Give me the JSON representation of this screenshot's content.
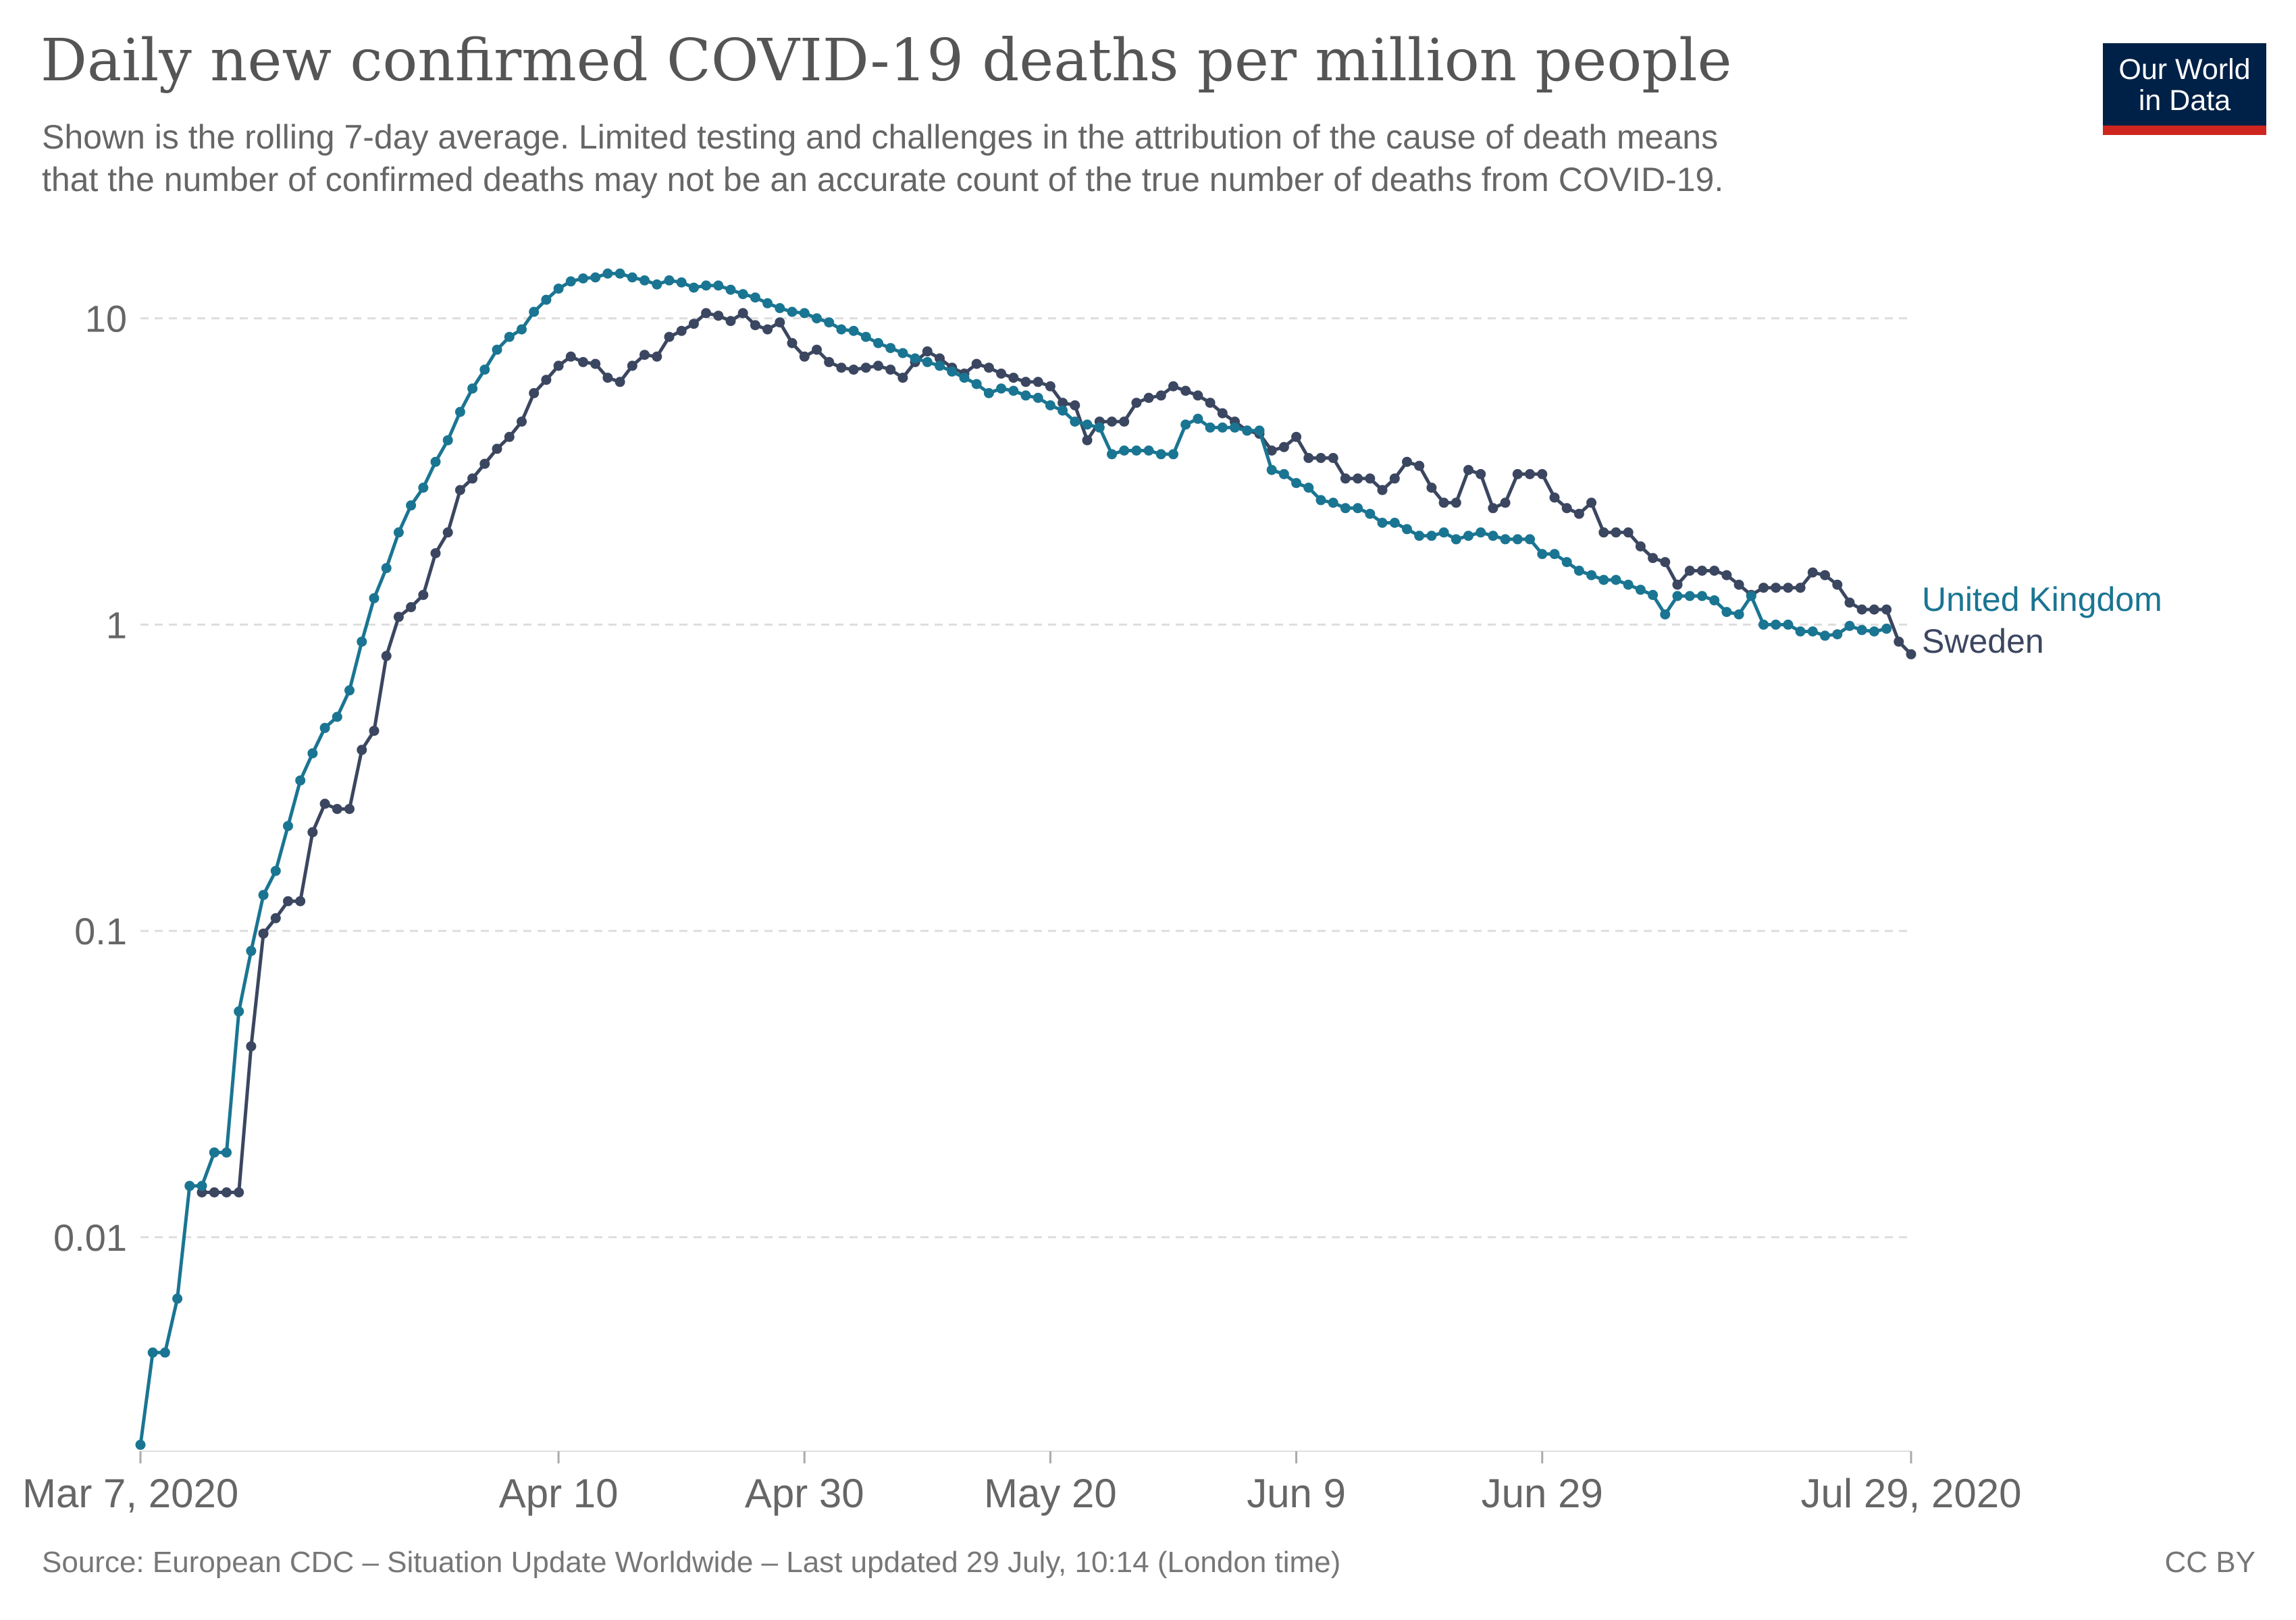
{
  "title": "Daily new confirmed COVID-19 deaths per million people",
  "subtitle_line1": "Shown is the rolling 7-day average. Limited testing and challenges in the attribution of the cause of death means",
  "subtitle_line2": "that the number of confirmed deaths may not be an accurate count of the true number of deaths from COVID-19.",
  "logo": {
    "line1": "Our World",
    "line2": "in Data"
  },
  "footer": {
    "source": "Source: European CDC – Situation Update Worldwide – Last updated 29 July, 10:14 (London time)",
    "license": "CC BY"
  },
  "colors": {
    "uk": "#1a7592",
    "sweden": "#3b4660",
    "grid": "#dddddd"
  },
  "chart_data": {
    "type": "line",
    "title": "Daily new confirmed COVID-19 deaths per million people",
    "yscale": "log",
    "ylim": [
      0.002,
      16
    ],
    "yticks": [
      {
        "value": 10,
        "label": "10"
      },
      {
        "value": 1,
        "label": "1"
      },
      {
        "value": 0.1,
        "label": "0.1"
      },
      {
        "value": 0.01,
        "label": "0.01"
      }
    ],
    "xlim": [
      0,
      144
    ],
    "xticks": [
      {
        "day": 0,
        "label": "Mar 7, 2020"
      },
      {
        "day": 34,
        "label": "Apr 10"
      },
      {
        "day": 54,
        "label": "Apr 30"
      },
      {
        "day": 74,
        "label": "May 20"
      },
      {
        "day": 94,
        "label": "Jun 9"
      },
      {
        "day": 114,
        "label": "Jun 29"
      },
      {
        "day": 144,
        "label": "Jul 29, 2020"
      }
    ],
    "legend_position": "right-end",
    "series": [
      {
        "name": "United Kingdom",
        "start_day": 0,
        "values": [
          0.0021,
          0.0042,
          0.0042,
          0.0063,
          0.0147,
          0.0147,
          0.0189,
          0.0189,
          0.0546,
          0.086,
          0.131,
          0.157,
          0.22,
          0.31,
          0.38,
          0.46,
          0.5,
          0.61,
          0.88,
          1.22,
          1.53,
          2.0,
          2.45,
          2.8,
          3.4,
          4.0,
          4.95,
          5.9,
          6.8,
          7.9,
          8.7,
          9.2,
          10.5,
          11.5,
          12.5,
          13.2,
          13.5,
          13.6,
          14.0,
          14.0,
          13.6,
          13.3,
          12.9,
          13.3,
          13.1,
          12.6,
          12.8,
          12.8,
          12.4,
          12.0,
          11.7,
          11.2,
          10.8,
          10.5,
          10.4,
          10.0,
          9.7,
          9.2,
          9.1,
          8.7,
          8.3,
          8.0,
          7.7,
          7.4,
          7.2,
          7.0,
          6.7,
          6.4,
          6.1,
          5.7,
          5.9,
          5.8,
          5.6,
          5.5,
          5.2,
          5.0,
          4.6,
          4.5,
          4.4,
          3.6,
          3.7,
          3.7,
          3.7,
          3.6,
          3.6,
          4.5,
          4.7,
          4.4,
          4.4,
          4.4,
          4.3,
          4.3,
          3.2,
          3.1,
          2.9,
          2.8,
          2.55,
          2.5,
          2.4,
          2.4,
          2.3,
          2.15,
          2.15,
          2.05,
          1.95,
          1.95,
          2.0,
          1.9,
          1.95,
          2.0,
          1.95,
          1.9,
          1.9,
          1.9,
          1.7,
          1.7,
          1.6,
          1.5,
          1.45,
          1.4,
          1.4,
          1.35,
          1.3,
          1.25,
          1.08,
          1.24,
          1.24,
          1.24,
          1.2,
          1.1,
          1.08,
          1.24,
          1.0,
          1.0,
          1.0,
          0.95,
          0.95,
          0.92,
          0.93,
          0.99,
          0.96,
          0.95,
          0.97
        ]
      },
      {
        "name": "Sweden",
        "start_day": 5,
        "values": [
          0.014,
          0.014,
          0.014,
          0.014,
          0.042,
          0.098,
          0.11,
          0.125,
          0.125,
          0.21,
          0.26,
          0.25,
          0.25,
          0.39,
          0.45,
          0.79,
          1.06,
          1.14,
          1.25,
          1.71,
          2.0,
          2.75,
          3.0,
          3.35,
          3.75,
          4.1,
          4.6,
          5.7,
          6.3,
          7.0,
          7.5,
          7.2,
          7.1,
          6.4,
          6.2,
          7.0,
          7.6,
          7.5,
          8.7,
          9.1,
          9.6,
          10.4,
          10.2,
          9.8,
          10.4,
          9.5,
          9.2,
          9.7,
          8.3,
          7.5,
          7.9,
          7.2,
          6.9,
          6.8,
          6.9,
          7.0,
          6.8,
          6.4,
          7.2,
          7.8,
          7.4,
          6.9,
          6.6,
          7.1,
          6.9,
          6.6,
          6.4,
          6.2,
          6.2,
          6.0,
          5.3,
          5.2,
          4.0,
          4.6,
          4.6,
          4.6,
          5.3,
          5.5,
          5.6,
          6.0,
          5.8,
          5.6,
          5.3,
          4.9,
          4.6,
          4.3,
          4.2,
          3.7,
          3.8,
          4.1,
          3.5,
          3.5,
          3.5,
          3.0,
          3.0,
          3.0,
          2.75,
          3.0,
          3.4,
          3.3,
          2.8,
          2.5,
          2.5,
          3.2,
          3.1,
          2.4,
          2.5,
          3.1,
          3.1,
          3.1,
          2.6,
          2.4,
          2.3,
          2.5,
          2.0,
          2.0,
          2.0,
          1.8,
          1.65,
          1.6,
          1.35,
          1.5,
          1.5,
          1.5,
          1.45,
          1.35,
          1.25,
          1.32,
          1.32,
          1.32,
          1.32,
          1.48,
          1.45,
          1.35,
          1.18,
          1.12,
          1.12,
          1.12,
          0.88,
          0.8
        ]
      }
    ]
  }
}
